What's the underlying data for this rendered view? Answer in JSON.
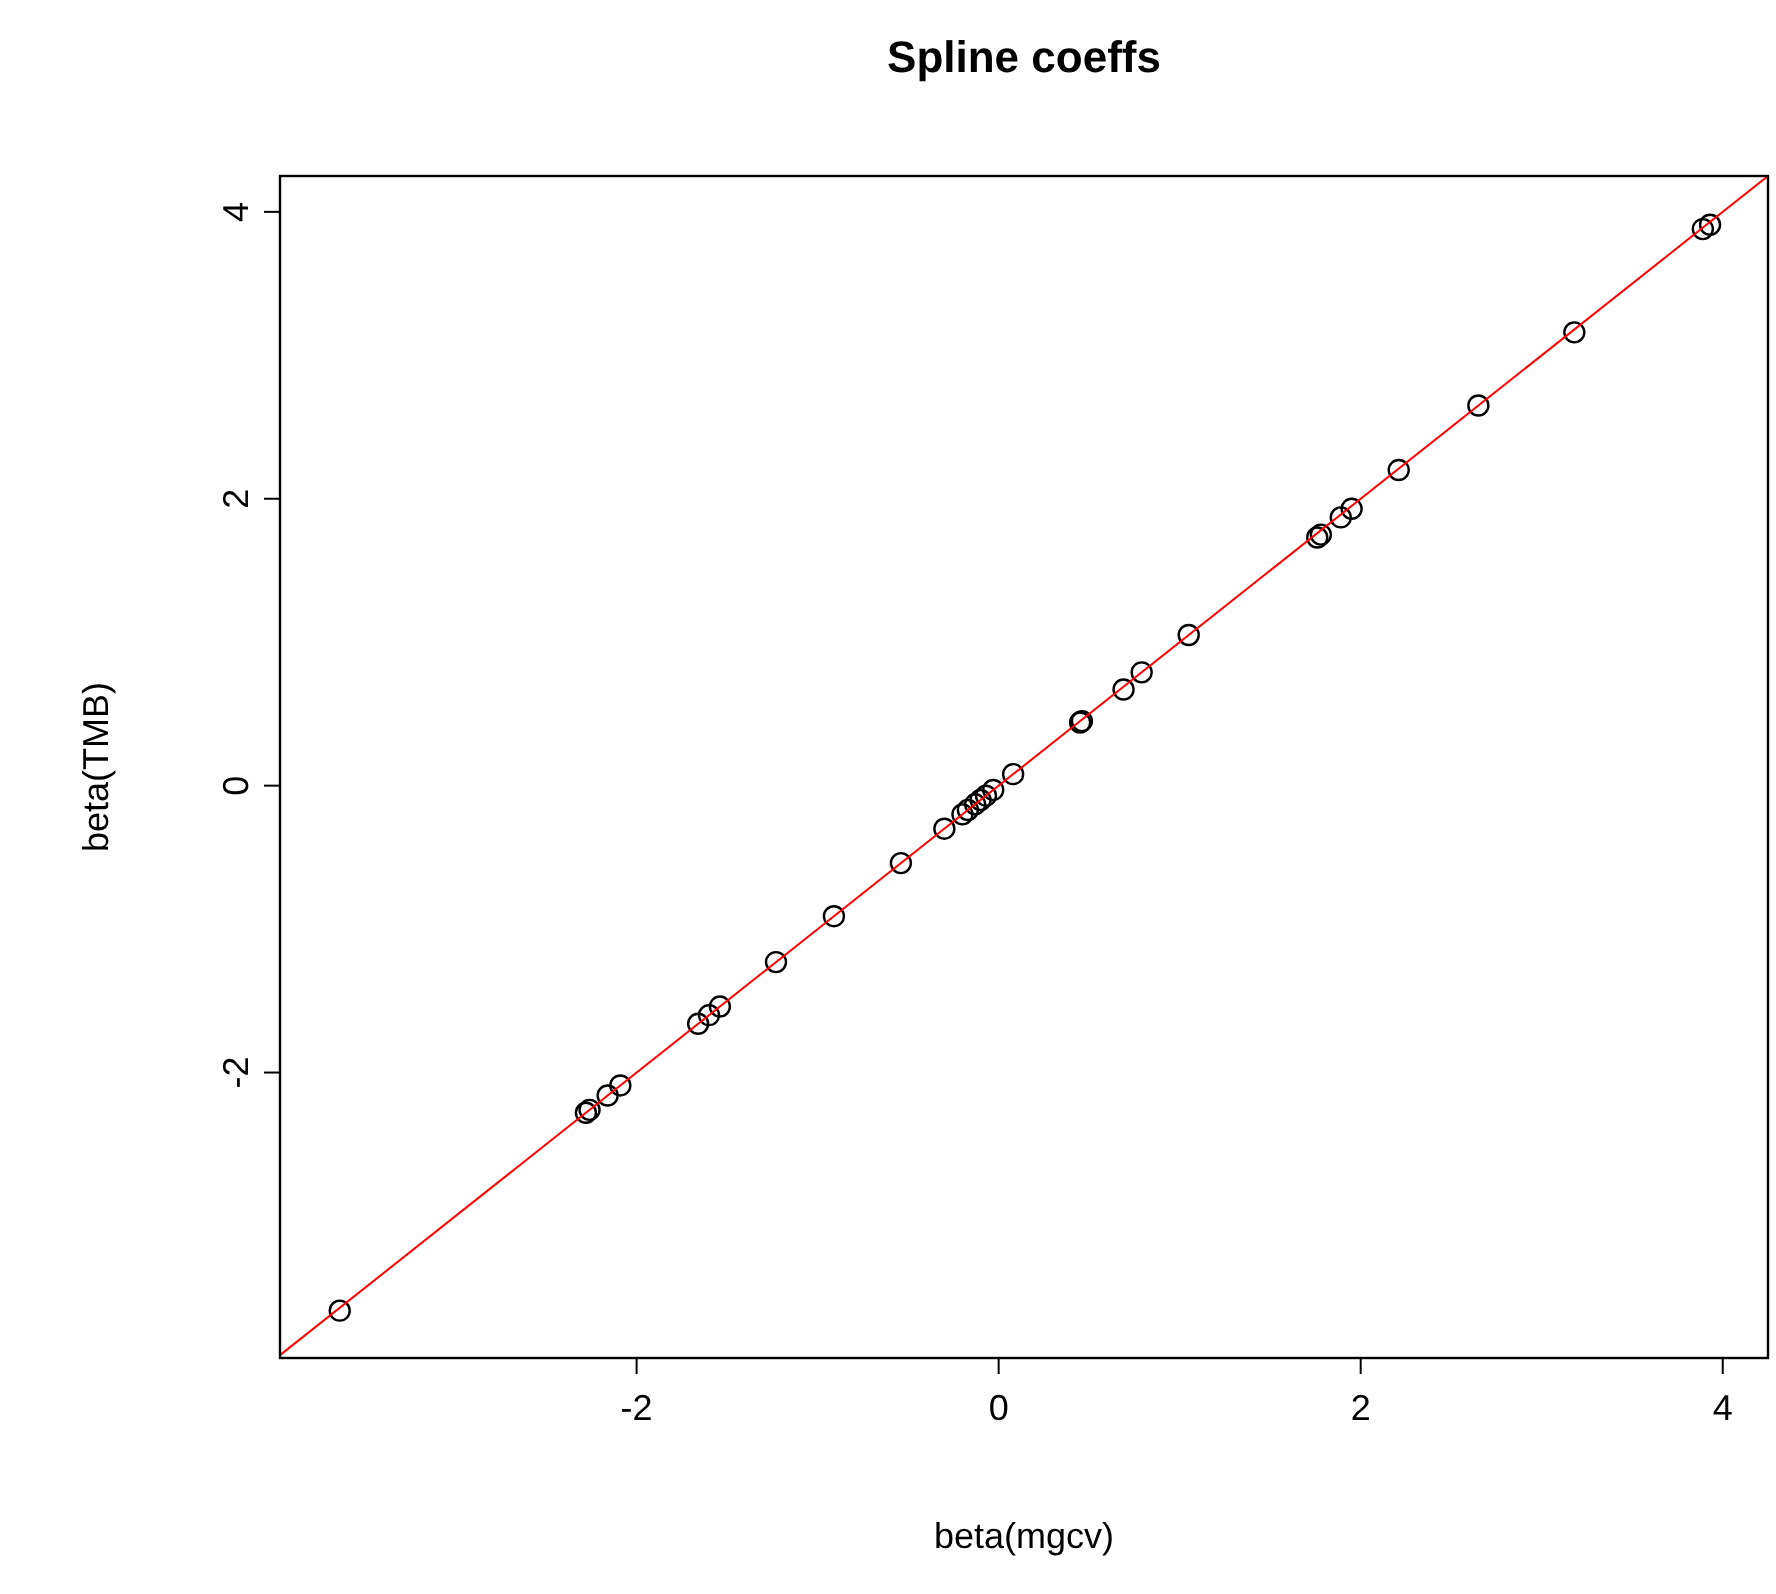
{
  "chart_data": {
    "type": "scatter",
    "title": "Spline coeffs",
    "xlabel": "beta(mgcv)",
    "ylabel": "beta(TMB)",
    "xlim": [
      -3.97,
      4.25
    ],
    "ylim": [
      -3.99,
      4.25
    ],
    "xticks": [
      -2,
      0,
      2,
      4
    ],
    "yticks": [
      -2,
      0,
      2,
      4
    ],
    "grid": false,
    "series": [
      {
        "marker": "circle",
        "color": "#000000",
        "x": [
          -3.64,
          -2.28,
          -2.26,
          -2.16,
          -2.09,
          -1.66,
          -1.6,
          -1.54,
          -1.23,
          -0.91,
          -0.54,
          -0.3,
          -0.2,
          -0.17,
          -0.13,
          -0.1,
          -0.07,
          -0.03,
          0.08,
          0.45,
          0.46,
          0.69,
          0.79,
          1.05,
          1.76,
          1.78,
          1.89,
          1.95,
          2.21,
          2.65,
          3.18,
          3.89,
          3.93
        ],
        "values": [
          -3.66,
          -2.28,
          -2.26,
          -2.16,
          -2.09,
          -1.66,
          -1.6,
          -1.54,
          -1.23,
          -0.91,
          -0.54,
          -0.3,
          -0.2,
          -0.17,
          -0.13,
          -0.1,
          -0.07,
          -0.03,
          0.08,
          0.44,
          0.45,
          0.67,
          0.79,
          1.05,
          1.73,
          1.75,
          1.87,
          1.93,
          2.2,
          2.65,
          3.16,
          3.88,
          3.91
        ]
      },
      {
        "type": "line",
        "color": "#ff0000",
        "x": [
          -3.97,
          4.25
        ],
        "values": [
          -3.97,
          4.25
        ],
        "line_style": "solid"
      }
    ]
  }
}
